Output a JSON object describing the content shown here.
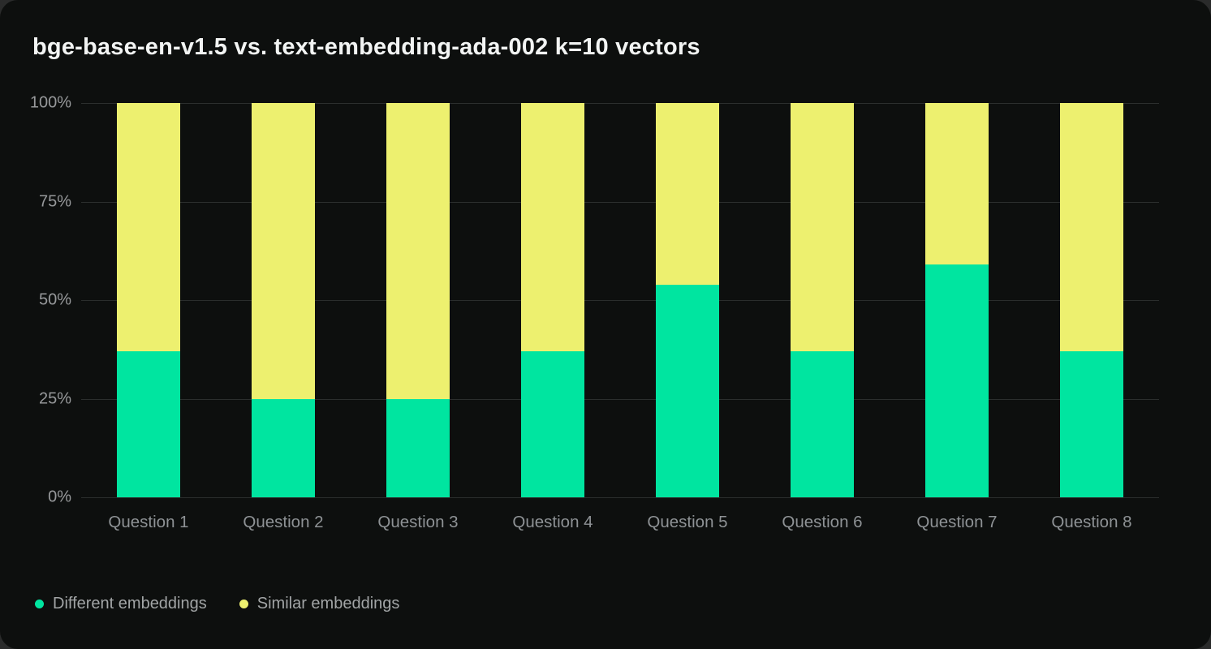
{
  "chart_data": {
    "type": "bar",
    "stacked": true,
    "title": "bge-base-en-v1.5 vs. text-embedding-ada-002 k=10 vectors",
    "categories": [
      "Question 1",
      "Question 2",
      "Question 3",
      "Question 4",
      "Question 5",
      "Question 6",
      "Question 7",
      "Question 8"
    ],
    "series": [
      {
        "name": "Different embeddings",
        "color": "#00E5A0",
        "values": [
          37,
          25,
          25,
          37,
          54,
          37,
          59,
          37
        ]
      },
      {
        "name": "Similar embeddings",
        "color": "#EDF06F",
        "values": [
          63,
          75,
          75,
          63,
          46,
          63,
          41,
          63
        ]
      }
    ],
    "xlabel": "",
    "ylabel": "",
    "y_ticks": [
      "0%",
      "25%",
      "50%",
      "75%",
      "100%"
    ],
    "ylim": [
      0,
      100
    ],
    "grid": true,
    "legend_position": "bottom-left",
    "background_color": "#0D0F0E",
    "page_background_color": "#2A2B2B"
  }
}
